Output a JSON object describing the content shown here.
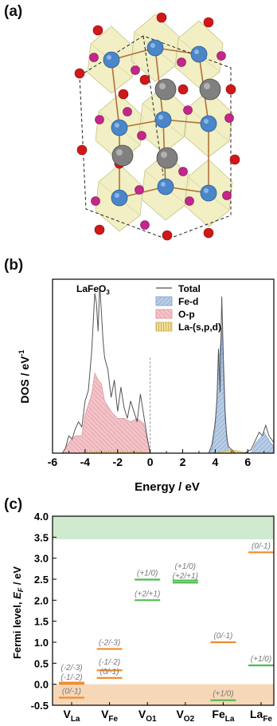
{
  "panels": {
    "a": "(a)",
    "b": "(b)",
    "c": "(c)"
  },
  "colors": {
    "fe_atom": "#4a86c8",
    "o_atom_red": "#d01818",
    "o_atom_pink": "#c4268a",
    "la_atom": "#808080",
    "octahedron": "#eeecb8",
    "fe_d": "#b8cde6",
    "o_p": "#f3c3c8",
    "la": "#f4df9a",
    "total": "#555555",
    "cbm_band": "#cfeacf",
    "vbm_band": "#f6d7b8",
    "orange_level": "#f08c2c",
    "green_level": "#4cbc4c",
    "annotation_gray": "#777777"
  },
  "chart_data": [
    {
      "type": "area",
      "panel": "(b)",
      "title": "LaFeO3",
      "xlabel": "Energy / eV",
      "ylabel": "DOS / eV-1",
      "xlim": [
        -6,
        7.6
      ],
      "xticks": [
        -6,
        -4,
        -2,
        0,
        2,
        4,
        6
      ],
      "ylim": [
        0,
        1
      ],
      "fermi_level_x": 0,
      "legend_position": "top-right",
      "series": [
        {
          "name": "Total",
          "style": "line",
          "x": [
            -5.4,
            -5.2,
            -5.0,
            -4.8,
            -4.6,
            -4.4,
            -4.2,
            -4.0,
            -3.8,
            -3.6,
            -3.4,
            -3.3,
            -3.2,
            -3.1,
            -3.0,
            -2.9,
            -2.8,
            -2.6,
            -2.4,
            -2.2,
            -2.0,
            -1.8,
            -1.6,
            -1.4,
            -1.2,
            -1.0,
            -0.8,
            -0.6,
            -0.4,
            -0.2,
            0.0,
            3.6,
            3.8,
            4.0,
            4.1,
            4.2,
            4.3,
            4.4,
            4.5,
            4.6,
            4.7,
            4.8,
            5.0,
            5.2,
            5.8,
            6.2,
            6.5,
            6.7,
            6.9,
            7.1,
            7.3,
            7.6
          ],
          "values": [
            0.0,
            0.03,
            0.1,
            0.08,
            0.14,
            0.18,
            0.15,
            0.3,
            0.36,
            0.58,
            0.92,
            0.86,
            0.7,
            0.96,
            0.82,
            0.65,
            0.55,
            0.48,
            0.32,
            0.42,
            0.24,
            0.38,
            0.26,
            0.2,
            0.3,
            0.24,
            0.18,
            0.34,
            0.22,
            0.1,
            0.0,
            0.0,
            0.05,
            0.18,
            0.3,
            0.6,
            0.35,
            0.9,
            0.55,
            0.25,
            0.1,
            0.04,
            0.02,
            0.0,
            0.0,
            0.02,
            0.08,
            0.12,
            0.1,
            0.16,
            0.1,
            0.06
          ]
        },
        {
          "name": "Fe-d",
          "style": "area",
          "x": [
            3.6,
            3.8,
            4.0,
            4.2,
            4.4,
            4.6,
            4.8,
            5.0,
            5.2,
            6.2,
            6.5,
            6.8,
            7.0,
            7.2,
            7.4,
            7.6
          ],
          "values": [
            0.0,
            0.03,
            0.14,
            0.5,
            0.72,
            0.2,
            0.03,
            0.0,
            0.0,
            0.0,
            0.06,
            0.09,
            0.12,
            0.09,
            0.06,
            0.04
          ]
        },
        {
          "name": "O-p",
          "style": "area",
          "x": [
            -5.4,
            -5.0,
            -4.6,
            -4.2,
            -4.0,
            -3.6,
            -3.4,
            -3.2,
            -3.0,
            -2.8,
            -2.4,
            -2.0,
            -1.6,
            -1.2,
            -0.8,
            -0.4,
            -0.2,
            0.0
          ],
          "values": [
            0.0,
            0.06,
            0.1,
            0.1,
            0.22,
            0.34,
            0.46,
            0.42,
            0.4,
            0.3,
            0.24,
            0.2,
            0.2,
            0.18,
            0.2,
            0.17,
            0.08,
            0.0
          ]
        },
        {
          "name": "La-(s,p,d)",
          "style": "area",
          "x": [
            -5.4,
            -4.0,
            -3.0,
            -2.0,
            -1.0,
            0.0,
            4.0,
            5.0,
            6.0,
            7.6
          ],
          "values": [
            0.0,
            0.01,
            0.01,
            0.01,
            0.01,
            0.0,
            0.0,
            0.02,
            0.0,
            0.01
          ]
        }
      ]
    },
    {
      "type": "scatter",
      "panel": "(c)",
      "ylabel": "Fermi level, E_F / eV",
      "ylim": [
        -0.5,
        4.0
      ],
      "yticks": [
        "-0.5",
        "0.0",
        "0.5",
        "1.0",
        "1.5",
        "2.0",
        "2.5",
        "3.0",
        "3.5",
        "4.0"
      ],
      "categories": [
        "V_La",
        "V_Fe",
        "V_O1",
        "V_O2",
        "Fe_La",
        "La_Fe"
      ],
      "category_labels": [
        {
          "main": "V",
          "sub": "La"
        },
        {
          "main": "V",
          "sub": "Fe"
        },
        {
          "main": "V",
          "sub": "O1"
        },
        {
          "main": "V",
          "sub": "O2"
        },
        {
          "main": "Fe",
          "sub": "La"
        },
        {
          "main": "La",
          "sub": "Fe"
        }
      ],
      "bands": {
        "conduction": [
          3.45,
          4.0
        ],
        "valence": [
          -0.5,
          0.0
        ]
      },
      "levels": [
        {
          "category": 0,
          "color": "orange",
          "y": -0.32,
          "label": "(0/-1)"
        },
        {
          "category": 0,
          "color": "orange",
          "y": 0.01,
          "label": "(-1/-2)"
        },
        {
          "category": 0,
          "color": "orange",
          "y": 0.04,
          "label": "(-2/-3)"
        },
        {
          "category": 1,
          "color": "orange",
          "y": 0.15,
          "label": "(0/-1)"
        },
        {
          "category": 1,
          "color": "orange",
          "y": 0.33,
          "label": "(-1/-2)"
        },
        {
          "category": 1,
          "color": "orange",
          "y": 0.84,
          "label": "(-2/-3)"
        },
        {
          "category": 2,
          "color": "green",
          "y": 2.0,
          "label": "(+2/+1)"
        },
        {
          "category": 2,
          "color": "green",
          "y": 2.49,
          "label": "(+1/0)"
        },
        {
          "category": 3,
          "color": "green",
          "y": 2.42,
          "label": "(+2/+1)"
        },
        {
          "category": 3,
          "color": "green",
          "y": 2.47,
          "label": "(+1/0)"
        },
        {
          "category": 4,
          "color": "orange",
          "y": 1.0,
          "label": "(0/-1)"
        },
        {
          "category": 4,
          "color": "green",
          "y": -0.38,
          "label": "(+1/0)"
        },
        {
          "category": 5,
          "color": "orange",
          "y": 3.14,
          "label": "(0/-1)"
        },
        {
          "category": 5,
          "color": "green",
          "y": 0.45,
          "label": "(+1/0)"
        }
      ]
    }
  ],
  "panel_b": {
    "title_main": "LaFeO",
    "title_sub": "3",
    "ylabel_main": "DOS / eV",
    "ylabel_sup": "-1"
  },
  "panel_c": {
    "ylabel_main": "Fermi level, ",
    "ylabel_italic": "E",
    "ylabel_sub": "F",
    "ylabel_tail": " / eV"
  }
}
